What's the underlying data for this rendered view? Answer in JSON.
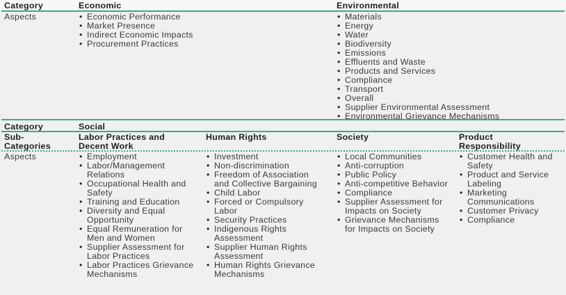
{
  "top": {
    "category_label": "Category",
    "economic": {
      "title": "Economic",
      "aspects": [
        "Economic Performance",
        "Market Presence",
        "Indirect Economic Impacts",
        "Procurement Practices"
      ]
    },
    "environmental": {
      "title": "Environmental",
      "aspects": [
        "Materials",
        "Energy",
        "Water",
        "Biodiversity",
        "Emissions",
        "Effluents and Waste",
        "Products and Services",
        "Compliance",
        "Transport",
        "Overall",
        "Supplier Environmental Assessment",
        "Environmental Grievance Mechanisms"
      ]
    },
    "aspects_label": "Aspects"
  },
  "social": {
    "category_label": "Category",
    "title": "Social",
    "subcategories_label": "Sub-Categories",
    "aspects_label": "Aspects",
    "columns": [
      {
        "title": "Labor Practices and Decent Work",
        "aspects": [
          "Employment",
          "Labor/Management Relations",
          "Occupational Health and Safety",
          "Training and Education",
          "Diversity and Equal Opportunity",
          "Equal Remuneration for Men and Women",
          "Supplier Assessment for Labor Practices",
          "Labor Practices Grievance Mechanisms"
        ]
      },
      {
        "title": "Human Rights",
        "aspects": [
          "Investment",
          "Non-discrimination",
          "Freedom of Association and Collective Bargaining",
          "Child Labor",
          "Forced or Compulsory Labor",
          "Security Practices",
          "Indigenous Rights Assessment",
          "Supplier Human Rights Assessment",
          "Human Rights Grievance Mechanisms"
        ]
      },
      {
        "title": "Society",
        "aspects": [
          "Local Communities",
          "Anti-corruption",
          "Public Policy",
          "Anti-competitive Behavior",
          "Compliance",
          "Supplier Assessment for Impacts on Society",
          "Grievance Mechanisms for Impacts on Society"
        ]
      },
      {
        "title": "Product Responsibility",
        "aspects": [
          "Customer Health and Safety",
          "Product and Service Labeling",
          "Marketing Communications",
          "Customer Privacy",
          "Compliance"
        ]
      }
    ]
  },
  "colors": {
    "accent": "#3aa98c",
    "background": "#f0f0f0"
  }
}
